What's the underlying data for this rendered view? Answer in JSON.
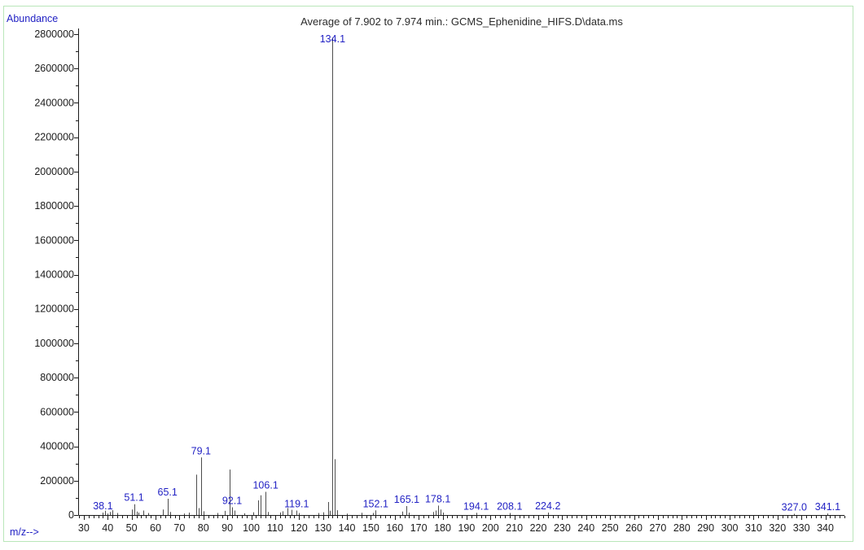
{
  "window": {
    "background": "#ffffff",
    "border_color": "#b9e6b9"
  },
  "colors": {
    "annotation_blue": "#2222c4",
    "axis_line": "#1a1a1a",
    "axis_text": "#1c1c1c",
    "peak_line": "#4d4d4d",
    "title_text": "#2b2b2b"
  },
  "labels": {
    "y_axis_title": "Abundance",
    "x_axis_title": "m/z-->",
    "title": "Average of 7.902 to 7.974 min.: GCMS_Ephenidine_HIFS.D\\data.ms"
  },
  "chart_data": {
    "type": "bar",
    "subtype": "mass-spectrum-stick-plot",
    "title": "Average of 7.902 to 7.974 min.: GCMS_Ephenidine_HIFS.D\\data.ms",
    "xlabel": "m/z-->",
    "ylabel": "Abundance",
    "xlim": [
      28,
      348
    ],
    "ylim": [
      0,
      2800000
    ],
    "grid": false,
    "x_major_tick_step": 10,
    "x_minor_tick_step": 2,
    "y_major_tick_step": 200000,
    "y_minor_tick_step": 100000,
    "x_tick_labels": [
      30,
      40,
      50,
      60,
      70,
      80,
      90,
      100,
      110,
      120,
      130,
      140,
      150,
      160,
      170,
      180,
      190,
      200,
      210,
      220,
      230,
      240,
      250,
      260,
      270,
      280,
      290,
      300,
      310,
      320,
      330,
      340
    ],
    "y_tick_labels": [
      0,
      200000,
      400000,
      600000,
      800000,
      1000000,
      1200000,
      1400000,
      1600000,
      1800000,
      2000000,
      2200000,
      2400000,
      2600000,
      2800000
    ],
    "base_peak": {
      "mz": 134.1,
      "abundance": 2780000
    },
    "peaks": [
      {
        "mz": 38,
        "abundance": 14000,
        "label": "38.1"
      },
      {
        "mz": 39,
        "abundance": 25000
      },
      {
        "mz": 40,
        "abundance": 9000
      },
      {
        "mz": 41,
        "abundance": 18000
      },
      {
        "mz": 42,
        "abundance": 28000
      },
      {
        "mz": 44,
        "abundance": 12000
      },
      {
        "mz": 50,
        "abundance": 32000
      },
      {
        "mz": 51,
        "abundance": 63000,
        "label": "51.1"
      },
      {
        "mz": 52,
        "abundance": 20000
      },
      {
        "mz": 53,
        "abundance": 14000
      },
      {
        "mz": 55,
        "abundance": 26000
      },
      {
        "mz": 57,
        "abundance": 12000
      },
      {
        "mz": 63,
        "abundance": 32000
      },
      {
        "mz": 65,
        "abundance": 95000,
        "label": "65.1"
      },
      {
        "mz": 66,
        "abundance": 18000
      },
      {
        "mz": 72,
        "abundance": 9000
      },
      {
        "mz": 74,
        "abundance": 14000
      },
      {
        "mz": 77,
        "abundance": 235000
      },
      {
        "mz": 78,
        "abundance": 40000
      },
      {
        "mz": 79,
        "abundance": 335000,
        "label": "79.1"
      },
      {
        "mz": 80,
        "abundance": 22000
      },
      {
        "mz": 86,
        "abundance": 12000
      },
      {
        "mz": 89,
        "abundance": 24000
      },
      {
        "mz": 91,
        "abundance": 265000
      },
      {
        "mz": 92,
        "abundance": 45000,
        "label": "92.1"
      },
      {
        "mz": 93,
        "abundance": 26000
      },
      {
        "mz": 97,
        "abundance": 10000
      },
      {
        "mz": 101,
        "abundance": 16000
      },
      {
        "mz": 103,
        "abundance": 85000
      },
      {
        "mz": 104,
        "abundance": 115000
      },
      {
        "mz": 106,
        "abundance": 135000,
        "label": "106.1"
      },
      {
        "mz": 107,
        "abundance": 18000
      },
      {
        "mz": 112,
        "abundance": 15000
      },
      {
        "mz": 113,
        "abundance": 22000
      },
      {
        "mz": 115,
        "abundance": 40000
      },
      {
        "mz": 117,
        "abundance": 30000
      },
      {
        "mz": 119,
        "abundance": 26000,
        "label": "119.1"
      },
      {
        "mz": 120,
        "abundance": 12000
      },
      {
        "mz": 128,
        "abundance": 12000
      },
      {
        "mz": 130,
        "abundance": 16000
      },
      {
        "mz": 132,
        "abundance": 76000
      },
      {
        "mz": 133,
        "abundance": 25000
      },
      {
        "mz": 134,
        "abundance": 2780000,
        "label": "134.1"
      },
      {
        "mz": 135,
        "abundance": 325000
      },
      {
        "mz": 136,
        "abundance": 28000
      },
      {
        "mz": 140,
        "abundance": 8000
      },
      {
        "mz": 146,
        "abundance": 13000
      },
      {
        "mz": 151,
        "abundance": 12000
      },
      {
        "mz": 152,
        "abundance": 27000,
        "label": "152.1"
      },
      {
        "mz": 163,
        "abundance": 20000
      },
      {
        "mz": 165,
        "abundance": 52000,
        "label": "165.1"
      },
      {
        "mz": 166,
        "abundance": 14000
      },
      {
        "mz": 176,
        "abundance": 18000
      },
      {
        "mz": 177,
        "abundance": 26000
      },
      {
        "mz": 178,
        "abundance": 55000,
        "label": "178.1"
      },
      {
        "mz": 179,
        "abundance": 32000
      },
      {
        "mz": 180,
        "abundance": 14000
      },
      {
        "mz": 194,
        "abundance": 13000,
        "label": "194.1"
      },
      {
        "mz": 208,
        "abundance": 12000,
        "label": "208.1"
      },
      {
        "mz": 224,
        "abundance": 14000,
        "label": "224.2"
      },
      {
        "mz": 327,
        "abundance": 7000,
        "label": "327.0"
      },
      {
        "mz": 341,
        "abundance": 9000,
        "label": "341.1"
      }
    ]
  }
}
